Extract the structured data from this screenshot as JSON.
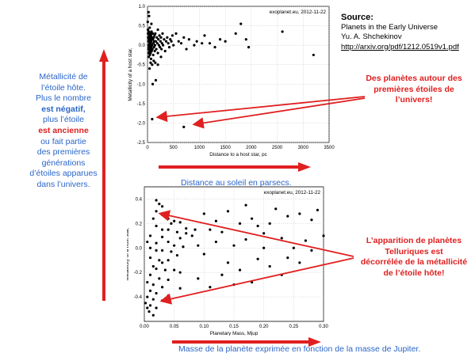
{
  "left_text": {
    "line1": "Métallicité de",
    "line2": "l’étoile hôte.",
    "line3": "Plus le nombre",
    "line4": "est négatif,",
    "line5": "plus l’étoile",
    "line6": "est ancienne",
    "line7": "ou fait partie",
    "line8": "des premières",
    "line9": "générations",
    "line10": "d’étoiles apparues",
    "line11": "dans l’univers."
  },
  "source": {
    "heading": "Source:",
    "line1": "Planets in the Early Universe",
    "line2": "Yu. A. Shchekinov",
    "line3": "http://arxiv.org/pdf/1212.0519v1.pdf"
  },
  "callout_top": {
    "line1": "Des planètes autour des",
    "line2": "premières étoiles de",
    "line3": "l’univers!"
  },
  "callout_bottom": {
    "line1": "L’apparition de planètes",
    "line2": "Telluriques est",
    "line3": "décorrélée de la métallicité",
    "line4": "de l’étoile hôte!"
  },
  "caption_top": "Distance au soleil en parsecs.",
  "caption_bottom": "Masse de la planète exprimée en fonction de la masse de Jupiter.",
  "colors": {
    "accent_red": "#e02020",
    "text_blue": "#2a66c8",
    "points": "#000000"
  },
  "chart_data": [
    {
      "type": "scatter",
      "title": "exoplanet.eu, 2012-11-22",
      "xlabel": "Distance to a host star, pc",
      "ylabel": "Metallicity of a host star,",
      "xlim": [
        0,
        3500
      ],
      "ylim": [
        -2.5,
        1.0
      ],
      "xticks": [
        "0",
        "500",
        "1000",
        "1500",
        "2000",
        "2500",
        "3000",
        "3500"
      ],
      "yticks": [
        "1.0",
        "0.5",
        "0.0",
        "-0.5",
        "-1.0",
        "-1.5",
        "-2.0",
        "-2.5"
      ],
      "grid": true,
      "points": [
        [
          5,
          0.6
        ],
        [
          8,
          0.4
        ],
        [
          10,
          0.3
        ],
        [
          12,
          0.2
        ],
        [
          15,
          0.1
        ],
        [
          18,
          0.0
        ],
        [
          20,
          -0.1
        ],
        [
          22,
          -0.2
        ],
        [
          25,
          -0.3
        ],
        [
          28,
          0.35
        ],
        [
          30,
          0.15
        ],
        [
          32,
          -0.05
        ],
        [
          35,
          0.25
        ],
        [
          38,
          -0.15
        ],
        [
          40,
          0.05
        ],
        [
          42,
          0.45
        ],
        [
          45,
          -0.25
        ],
        [
          48,
          0.2
        ],
        [
          50,
          0.1
        ],
        [
          52,
          -0.1
        ],
        [
          55,
          0.3
        ],
        [
          58,
          0.0
        ],
        [
          60,
          -0.2
        ],
        [
          62,
          0.15
        ],
        [
          65,
          0.05
        ],
        [
          68,
          -0.35
        ],
        [
          70,
          0.25
        ],
        [
          72,
          -0.05
        ],
        [
          75,
          0.1
        ],
        [
          78,
          0.35
        ],
        [
          80,
          -0.15
        ],
        [
          85,
          0.2
        ],
        [
          90,
          0.0
        ],
        [
          95,
          -0.1
        ],
        [
          100,
          0.3
        ],
        [
          105,
          0.15
        ],
        [
          110,
          -0.25
        ],
        [
          115,
          0.05
        ],
        [
          120,
          0.2
        ],
        [
          125,
          -0.05
        ],
        [
          130,
          0.1
        ],
        [
          135,
          0.25
        ],
        [
          140,
          -0.15
        ],
        [
          145,
          0.0
        ],
        [
          150,
          0.3
        ],
        [
          160,
          0.1
        ],
        [
          170,
          -0.1
        ],
        [
          180,
          0.2
        ],
        [
          190,
          0.05
        ],
        [
          200,
          -0.2
        ],
        [
          210,
          0.15
        ],
        [
          220,
          0.0
        ],
        [
          230,
          0.25
        ],
        [
          240,
          -0.05
        ],
        [
          250,
          0.1
        ],
        [
          260,
          0.2
        ],
        [
          270,
          -0.1
        ],
        [
          280,
          0.05
        ],
        [
          290,
          0.3
        ],
        [
          300,
          0.0
        ],
        [
          320,
          0.15
        ],
        [
          340,
          -0.15
        ],
        [
          360,
          0.1
        ],
        [
          380,
          0.2
        ],
        [
          400,
          0.05
        ],
        [
          420,
          -0.05
        ],
        [
          440,
          0.15
        ],
        [
          460,
          0.1
        ],
        [
          480,
          0.25
        ],
        [
          500,
          0.0
        ],
        [
          60,
          -0.45
        ],
        [
          90,
          -0.5
        ],
        [
          40,
          -0.6
        ],
        [
          120,
          -0.4
        ],
        [
          30,
          0.75
        ],
        [
          20,
          0.85
        ],
        [
          150,
          -0.45
        ],
        [
          200,
          0.4
        ],
        [
          260,
          -0.3
        ],
        [
          75,
          0.55
        ],
        [
          550,
          0.3
        ],
        [
          600,
          0.1
        ],
        [
          650,
          0.05
        ],
        [
          700,
          0.2
        ],
        [
          750,
          -0.1
        ],
        [
          800,
          0.15
        ],
        [
          900,
          0.0
        ],
        [
          950,
          0.1
        ],
        [
          1050,
          0.05
        ],
        [
          1100,
          0.25
        ],
        [
          1200,
          0.05
        ],
        [
          1300,
          -0.05
        ],
        [
          1400,
          0.15
        ],
        [
          1500,
          0.1
        ],
        [
          1700,
          0.3
        ],
        [
          1900,
          0.15
        ],
        [
          1950,
          -0.05
        ],
        [
          2600,
          0.35
        ],
        [
          3200,
          -0.25
        ],
        [
          1800,
          0.55
        ],
        [
          160,
          -0.9
        ],
        [
          200,
          -0.5
        ],
        [
          100,
          -1.0
        ],
        [
          90,
          -1.9
        ],
        [
          700,
          -2.1
        ]
      ]
    },
    {
      "type": "scatter",
      "title": "exoplanet.eu, 2012-11-22",
      "xlabel": "Planetary Mass, Mjup",
      "ylabel": "Metallicity of a host star,",
      "xlim": [
        0,
        0.3
      ],
      "ylim": [
        -0.6,
        0.5
      ],
      "xticks": [
        "0.00",
        "0.05",
        "0.10",
        "0.15",
        "0.20",
        "0.25",
        "0.30"
      ],
      "yticks": [
        "0.4",
        "0.2",
        "0.0",
        "-0.2",
        "-0.4"
      ],
      "grid": true,
      "points": [
        [
          0.02,
          0.39
        ],
        [
          0.025,
          0.36
        ],
        [
          0.03,
          0.34
        ],
        [
          0.02,
          0.3
        ],
        [
          0.03,
          0.27
        ],
        [
          0.015,
          0.24
        ],
        [
          0.04,
          0.24
        ],
        [
          0.05,
          0.22
        ],
        [
          0.045,
          0.2
        ],
        [
          0.06,
          0.21
        ],
        [
          0.02,
          0.18
        ],
        [
          0.03,
          0.15
        ],
        [
          0.04,
          0.15
        ],
        [
          0.055,
          0.13
        ],
        [
          0.07,
          0.16
        ],
        [
          0.085,
          0.15
        ],
        [
          0.07,
          0.12
        ],
        [
          0.01,
          0.1
        ],
        [
          0.03,
          0.09
        ],
        [
          0.06,
          0.08
        ],
        [
          0.005,
          0.05
        ],
        [
          0.02,
          0.04
        ],
        [
          0.04,
          0.05
        ],
        [
          0.05,
          0.02
        ],
        [
          0.065,
          0.01
        ],
        [
          0.01,
          0.0
        ],
        [
          0.02,
          -0.02
        ],
        [
          0.03,
          -0.02
        ],
        [
          0.045,
          -0.03
        ],
        [
          0.055,
          -0.06
        ],
        [
          0.01,
          -0.08
        ],
        [
          0.025,
          -0.1
        ],
        [
          0.03,
          -0.12
        ],
        [
          0.04,
          -0.1
        ],
        [
          0.015,
          -0.15
        ],
        [
          0.02,
          -0.17
        ],
        [
          0.035,
          -0.18
        ],
        [
          0.05,
          -0.18
        ],
        [
          0.06,
          -0.2
        ],
        [
          0.01,
          -0.22
        ],
        [
          0.025,
          -0.25
        ],
        [
          0.04,
          -0.26
        ],
        [
          0.005,
          -0.28
        ],
        [
          0.015,
          -0.3
        ],
        [
          0.03,
          -0.32
        ],
        [
          0.06,
          -0.33
        ],
        [
          0.01,
          -0.35
        ],
        [
          0.02,
          -0.37
        ],
        [
          0.04,
          -0.39
        ],
        [
          0.005,
          -0.4
        ],
        [
          0.015,
          -0.42
        ],
        [
          0.03,
          -0.43
        ],
        [
          0.002,
          -0.45
        ],
        [
          0.01,
          -0.47
        ],
        [
          0.005,
          -0.49
        ],
        [
          0.02,
          -0.49
        ],
        [
          0.008,
          -0.52
        ],
        [
          0.015,
          -0.55
        ],
        [
          0.1,
          0.28
        ],
        [
          0.12,
          0.22
        ],
        [
          0.14,
          0.3
        ],
        [
          0.11,
          0.15
        ],
        [
          0.13,
          0.13
        ],
        [
          0.16,
          0.2
        ],
        [
          0.18,
          0.24
        ],
        [
          0.19,
          0.18
        ],
        [
          0.2,
          0.12
        ],
        [
          0.22,
          0.32
        ],
        [
          0.24,
          0.26
        ],
        [
          0.26,
          0.28
        ],
        [
          0.28,
          0.23
        ],
        [
          0.29,
          0.31
        ],
        [
          0.12,
          0.05
        ],
        [
          0.15,
          0.02
        ],
        [
          0.17,
          0.07
        ],
        [
          0.2,
          0.0
        ],
        [
          0.23,
          0.08
        ],
        [
          0.25,
          0.0
        ],
        [
          0.27,
          0.06
        ],
        [
          0.1,
          -0.05
        ],
        [
          0.14,
          -0.12
        ],
        [
          0.16,
          -0.18
        ],
        [
          0.19,
          -0.09
        ],
        [
          0.21,
          -0.15
        ],
        [
          0.24,
          -0.08
        ],
        [
          0.26,
          -0.12
        ],
        [
          0.28,
          -0.02
        ],
        [
          0.3,
          0.1
        ],
        [
          0.09,
          -0.25
        ],
        [
          0.13,
          -0.22
        ],
        [
          0.11,
          -0.32
        ],
        [
          0.18,
          -0.28
        ],
        [
          0.08,
          0.1
        ],
        [
          0.09,
          0.02
        ],
        [
          0.15,
          -0.3
        ],
        [
          0.21,
          0.2
        ],
        [
          0.17,
          0.35
        ],
        [
          0.23,
          -0.22
        ]
      ]
    }
  ]
}
